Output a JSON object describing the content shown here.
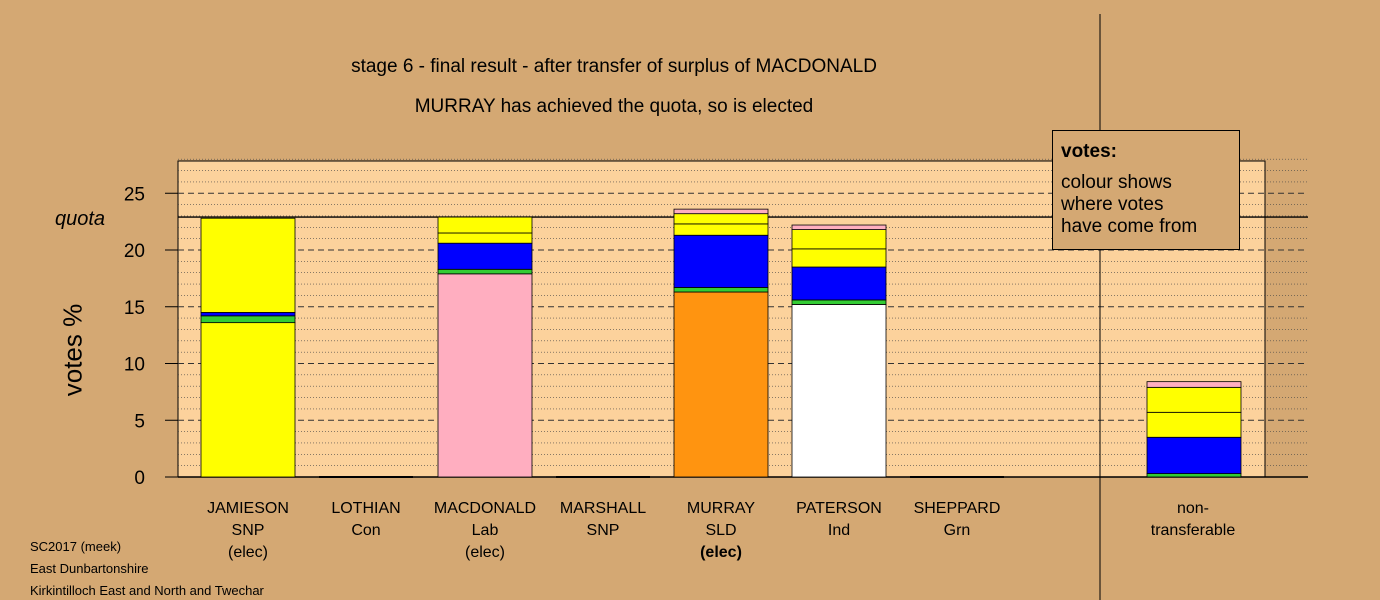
{
  "title_line1": "stage 6 - final result - after transfer of surplus of MACDONALD",
  "title_line2": "MURRAY has achieved the quota, so is elected",
  "legend": {
    "heading": "votes:",
    "lines": [
      "colour shows",
      "where votes",
      "have come from"
    ]
  },
  "footer": [
    "SC2017 (meek)",
    "East Dunbartonshire",
    "Kirkintilloch East and North and Twechar"
  ],
  "colors": {
    "background": "#d4a873",
    "plot": "#fcd29c",
    "snp": "#ffff00",
    "lab": "#ffaec0",
    "sld": "#ff9410",
    "ind": "#ffffff",
    "green": "#33cc33",
    "con": "#0000ff"
  },
  "chart_data": {
    "type": "bar",
    "stacked": true,
    "ylabel": "votes %",
    "ylim": [
      0,
      28
    ],
    "yticks": [
      0,
      5,
      10,
      15,
      20,
      25
    ],
    "quota": {
      "label": "quota",
      "value": 22.9
    },
    "candidates": [
      {
        "name": "JAMIESON",
        "party": "SNP",
        "status": "(elec)",
        "bold": false,
        "segments": [
          {
            "color": "#ffff00",
            "value": 13.6
          },
          {
            "color": "#33cc33",
            "value": 0.6
          },
          {
            "color": "#0000ff",
            "value": 0.3
          },
          {
            "color": "#ffff00",
            "value": 8.3
          }
        ]
      },
      {
        "name": "LOTHIAN",
        "party": "Con",
        "status": "",
        "bold": false,
        "segments": []
      },
      {
        "name": "MACDONALD",
        "party": "Lab",
        "status": "(elec)",
        "bold": false,
        "segments": [
          {
            "color": "#ffaec0",
            "value": 17.9
          },
          {
            "color": "#33cc33",
            "value": 0.4
          },
          {
            "color": "#0000ff",
            "value": 2.3
          },
          {
            "color": "#ffff00",
            "value": 0.9
          },
          {
            "color": "#ffff00",
            "value": 1.4
          }
        ]
      },
      {
        "name": "MARSHALL",
        "party": "SNP",
        "status": "",
        "bold": false,
        "segments": []
      },
      {
        "name": "MURRAY",
        "party": "SLD",
        "status": "(elec)",
        "bold": true,
        "segments": [
          {
            "color": "#ff9410",
            "value": 16.3
          },
          {
            "color": "#33cc33",
            "value": 0.4
          },
          {
            "color": "#0000ff",
            "value": 4.6
          },
          {
            "color": "#ffff00",
            "value": 1.0
          },
          {
            "color": "#ffff00",
            "value": 0.9
          },
          {
            "color": "#ffaec0",
            "value": 0.4
          }
        ]
      },
      {
        "name": "PATERSON",
        "party": "Ind",
        "status": "",
        "bold": false,
        "segments": [
          {
            "color": "#ffffff",
            "value": 15.2
          },
          {
            "color": "#33cc33",
            "value": 0.4
          },
          {
            "color": "#0000ff",
            "value": 2.9
          },
          {
            "color": "#ffff00",
            "value": 1.6
          },
          {
            "color": "#ffff00",
            "value": 1.7
          },
          {
            "color": "#ffaec0",
            "value": 0.4
          }
        ]
      },
      {
        "name": "SHEPPARD",
        "party": "Grn",
        "status": "",
        "bold": false,
        "segments": []
      }
    ],
    "nontransferable": {
      "name": "non-",
      "party": "transferable",
      "segments": [
        {
          "color": "#33cc33",
          "value": 0.3
        },
        {
          "color": "#0000ff",
          "value": 3.2
        },
        {
          "color": "#ffff00",
          "value": 2.2
        },
        {
          "color": "#ffff00",
          "value": 2.2
        },
        {
          "color": "#ffaec0",
          "value": 0.5
        }
      ]
    }
  }
}
